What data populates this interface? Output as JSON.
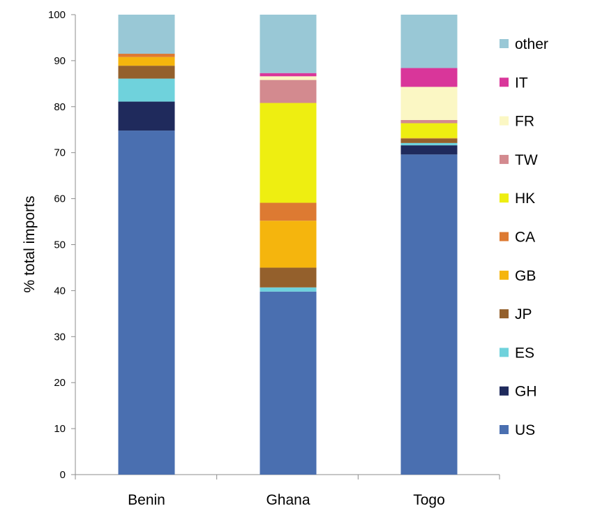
{
  "chart_data": {
    "type": "bar",
    "stacked": true,
    "title": "",
    "xlabel": "",
    "ylabel": "% total imports",
    "ylim": [
      0,
      100
    ],
    "yticks": [
      "0",
      "10",
      "20",
      "30",
      "40",
      "50",
      "60",
      "70",
      "80",
      "90",
      "100"
    ],
    "grid": false,
    "legend_position": "right",
    "categories": [
      "Benin",
      "Ghana",
      "Togo"
    ],
    "series": [
      {
        "name": "US",
        "color": "#4a6fb0",
        "values": [
          74.8,
          39.8,
          69.6
        ]
      },
      {
        "name": "GH",
        "color": "#1f2a5c",
        "values": [
          6.3,
          0.0,
          2.0
        ]
      },
      {
        "name": "ES",
        "color": "#6fd2dc",
        "values": [
          5.0,
          0.9,
          0.5
        ]
      },
      {
        "name": "JP",
        "color": "#94602c",
        "values": [
          2.8,
          4.3,
          1.0
        ]
      },
      {
        "name": "GB",
        "color": "#f5b50d",
        "values": [
          1.9,
          10.2,
          0.1
        ]
      },
      {
        "name": "CA",
        "color": "#dd7a32",
        "values": [
          0.7,
          3.9,
          0.0
        ]
      },
      {
        "name": "HK",
        "color": "#eeee11",
        "values": [
          0.0,
          21.7,
          3.2
        ]
      },
      {
        "name": "TW",
        "color": "#d38a8f",
        "values": [
          0.0,
          5.0,
          0.7
        ]
      },
      {
        "name": "FR",
        "color": "#fbf7c4",
        "values": [
          0.0,
          0.8,
          7.2
        ]
      },
      {
        "name": "IT",
        "color": "#d9369a",
        "values": [
          0.0,
          0.7,
          4.1
        ]
      },
      {
        "name": "other",
        "color": "#99c8d6",
        "values": [
          8.5,
          12.7,
          11.6
        ]
      }
    ]
  }
}
